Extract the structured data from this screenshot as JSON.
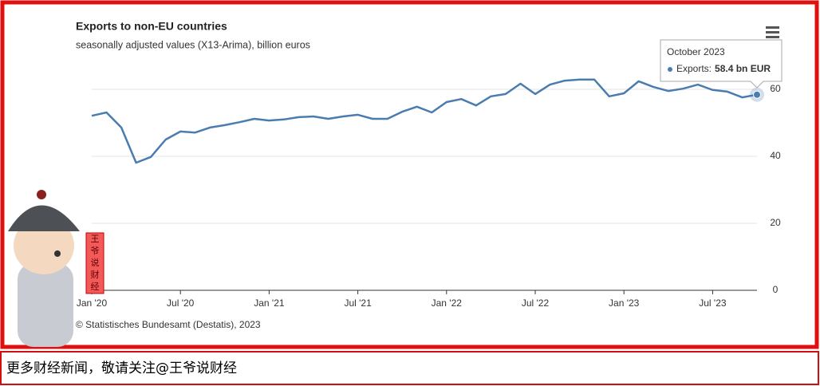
{
  "chart_data": {
    "type": "line",
    "title": "Exports to non-EU countries",
    "subtitle": "seasonally adjusted values (X13-Arima), billion euros",
    "categories": [
      "Jan '20",
      null,
      null,
      null,
      null,
      null,
      "Jul '20",
      null,
      null,
      null,
      null,
      null,
      "Jan '21",
      null,
      null,
      null,
      null,
      null,
      "Jul '21",
      null,
      null,
      null,
      null,
      null,
      "Jan '22",
      null,
      null,
      null,
      null,
      null,
      "Jul '22",
      null,
      null,
      null,
      null,
      null,
      "Jan '23",
      null,
      null,
      null,
      null,
      null,
      "Jul '23",
      null,
      null,
      null
    ],
    "series": [
      {
        "name": "Exports",
        "color": "#4a7cb0",
        "values": [
          52.1,
          53.1,
          48.6,
          38.1,
          39.8,
          45.0,
          47.4,
          47.1,
          48.6,
          49.3,
          50.2,
          51.2,
          50.7,
          51.0,
          51.7,
          51.9,
          51.2,
          51.9,
          52.4,
          51.2,
          51.2,
          53.3,
          54.8,
          53.1,
          56.2,
          57.1,
          55.2,
          57.9,
          58.6,
          61.7,
          58.6,
          61.4,
          62.6,
          62.9,
          62.9,
          57.9,
          58.8,
          62.4,
          60.7,
          59.5,
          60.2,
          61.4,
          59.8,
          59.3,
          57.6,
          58.4
        ]
      }
    ],
    "ylim": [
      0,
      65
    ],
    "yticks": [
      0,
      20,
      40,
      60
    ],
    "grid": true,
    "tooltip": {
      "title": "October 2023",
      "label": "Exports:",
      "value_label": "58.4 bn EUR"
    },
    "credit": "© Statistisches Bundesamt (Destatis), 2023"
  },
  "overlay": {
    "banner": "更多财经新闻，敬请关注@王爷说财经",
    "seal": "王爷说财经"
  }
}
